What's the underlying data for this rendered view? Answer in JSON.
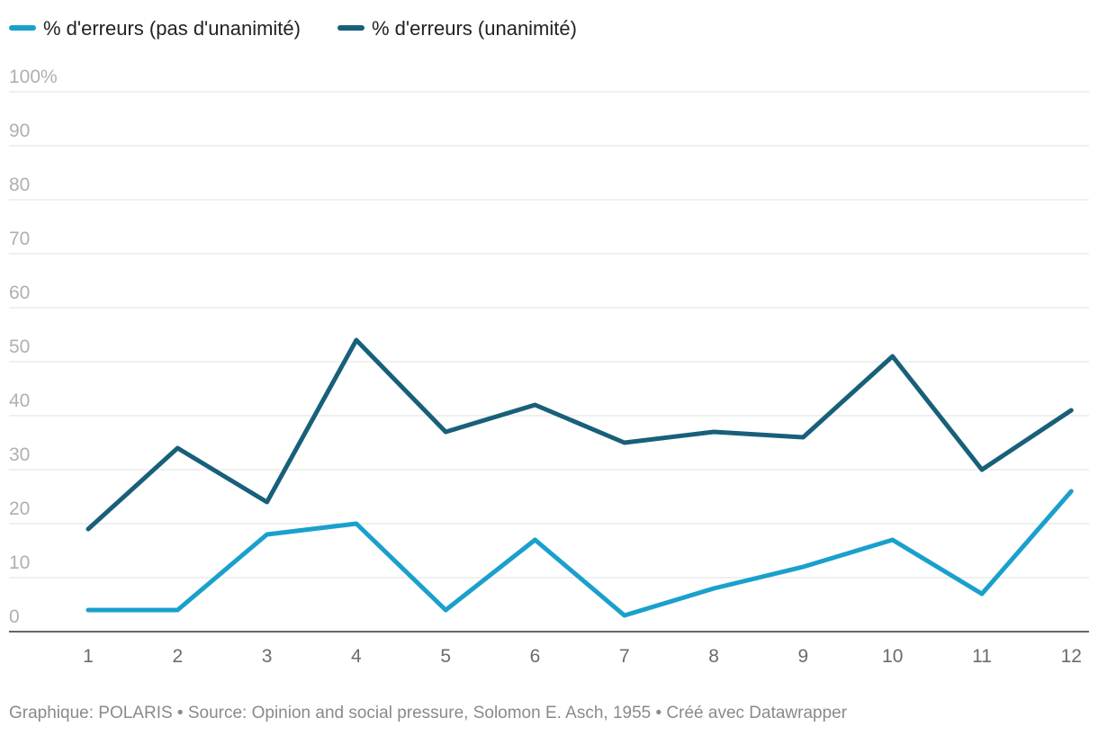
{
  "chart_data": {
    "type": "line",
    "title": "",
    "xlabel": "",
    "ylabel": "",
    "categories": [
      "1",
      "2",
      "3",
      "4",
      "5",
      "6",
      "7",
      "8",
      "9",
      "10",
      "11",
      "12"
    ],
    "ylim": [
      0,
      100
    ],
    "y_ticks": [
      "0",
      "10",
      "20",
      "30",
      "40",
      "50",
      "60",
      "70",
      "80",
      "90",
      "100%"
    ],
    "y_tick_values": [
      0,
      10,
      20,
      30,
      40,
      50,
      60,
      70,
      80,
      90,
      100
    ],
    "legend_position": "top-left",
    "series": [
      {
        "name": "% d'erreurs (pas d'unanimité)",
        "color": "#1aa0cc",
        "values": [
          4,
          4,
          18,
          20,
          4,
          17,
          3,
          8,
          12,
          17,
          7,
          26
        ]
      },
      {
        "name": "% d'erreurs (unanimité)",
        "color": "#18607a",
        "values": [
          19,
          34,
          24,
          54,
          37,
          42,
          35,
          37,
          36,
          51,
          30,
          41
        ]
      }
    ],
    "footer": "Graphique: POLARIS • Source: Opinion and social pressure, Solomon E. Asch, 1955 • Créé avec Datawrapper"
  }
}
